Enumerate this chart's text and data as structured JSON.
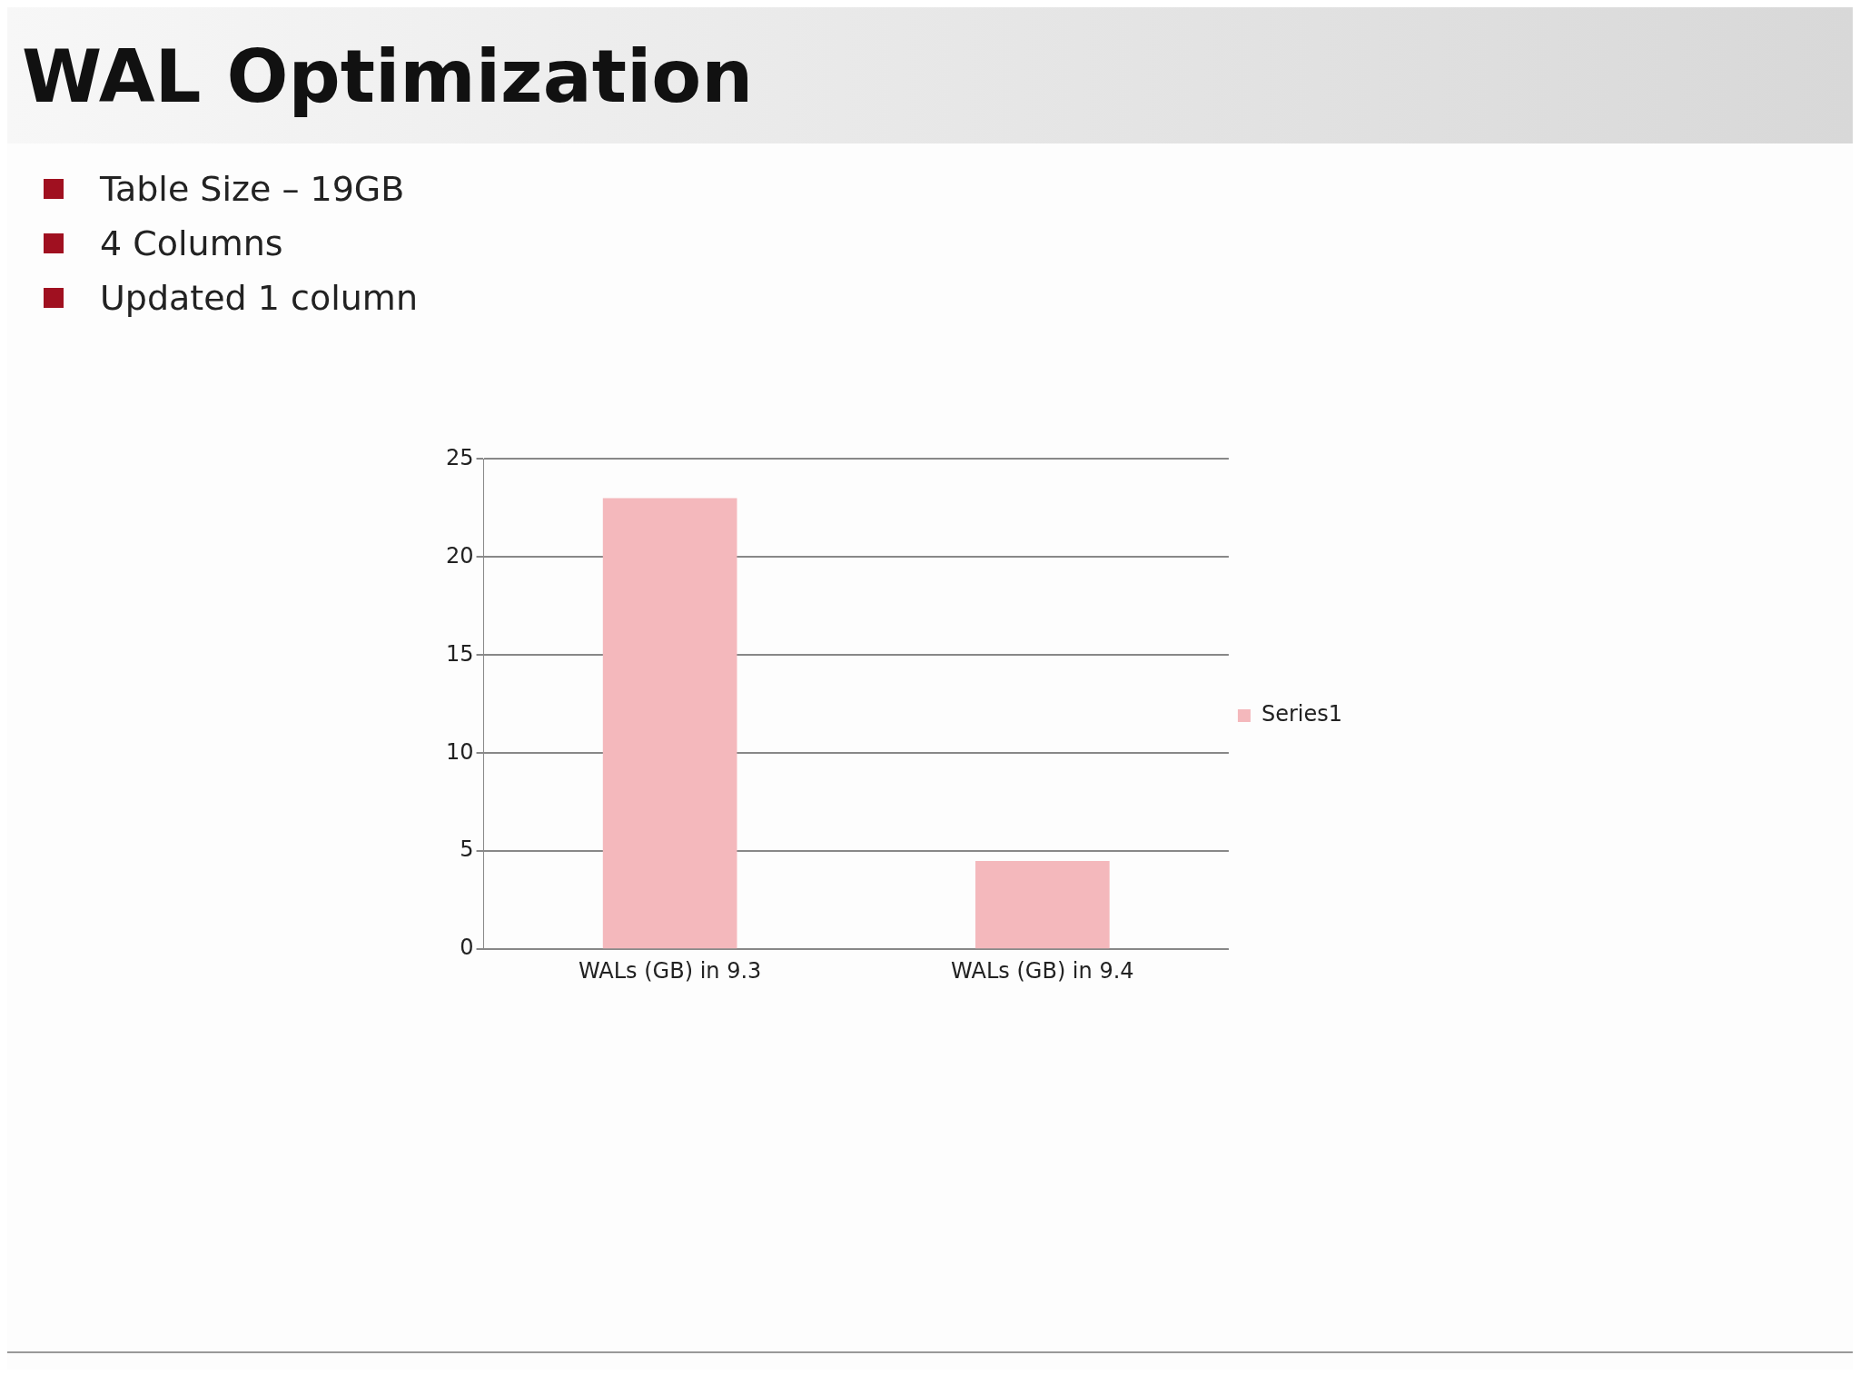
{
  "chart_data": {
    "type": "bar",
    "title": "WAL Optimization",
    "annotations": [
      "Table Size – 19GB",
      "4 Columns",
      "Updated 1 column"
    ],
    "categories": [
      "WALs (GB) in 9.3",
      "WALs (GB) in 9.4"
    ],
    "series": [
      {
        "name": "Series1",
        "color": "#f4b8bc",
        "values": [
          23,
          4.5
        ]
      }
    ],
    "ylim": [
      0,
      25
    ],
    "yticks": [
      0,
      5,
      10,
      15,
      20,
      25
    ],
    "grid": "y",
    "legend": "right"
  }
}
